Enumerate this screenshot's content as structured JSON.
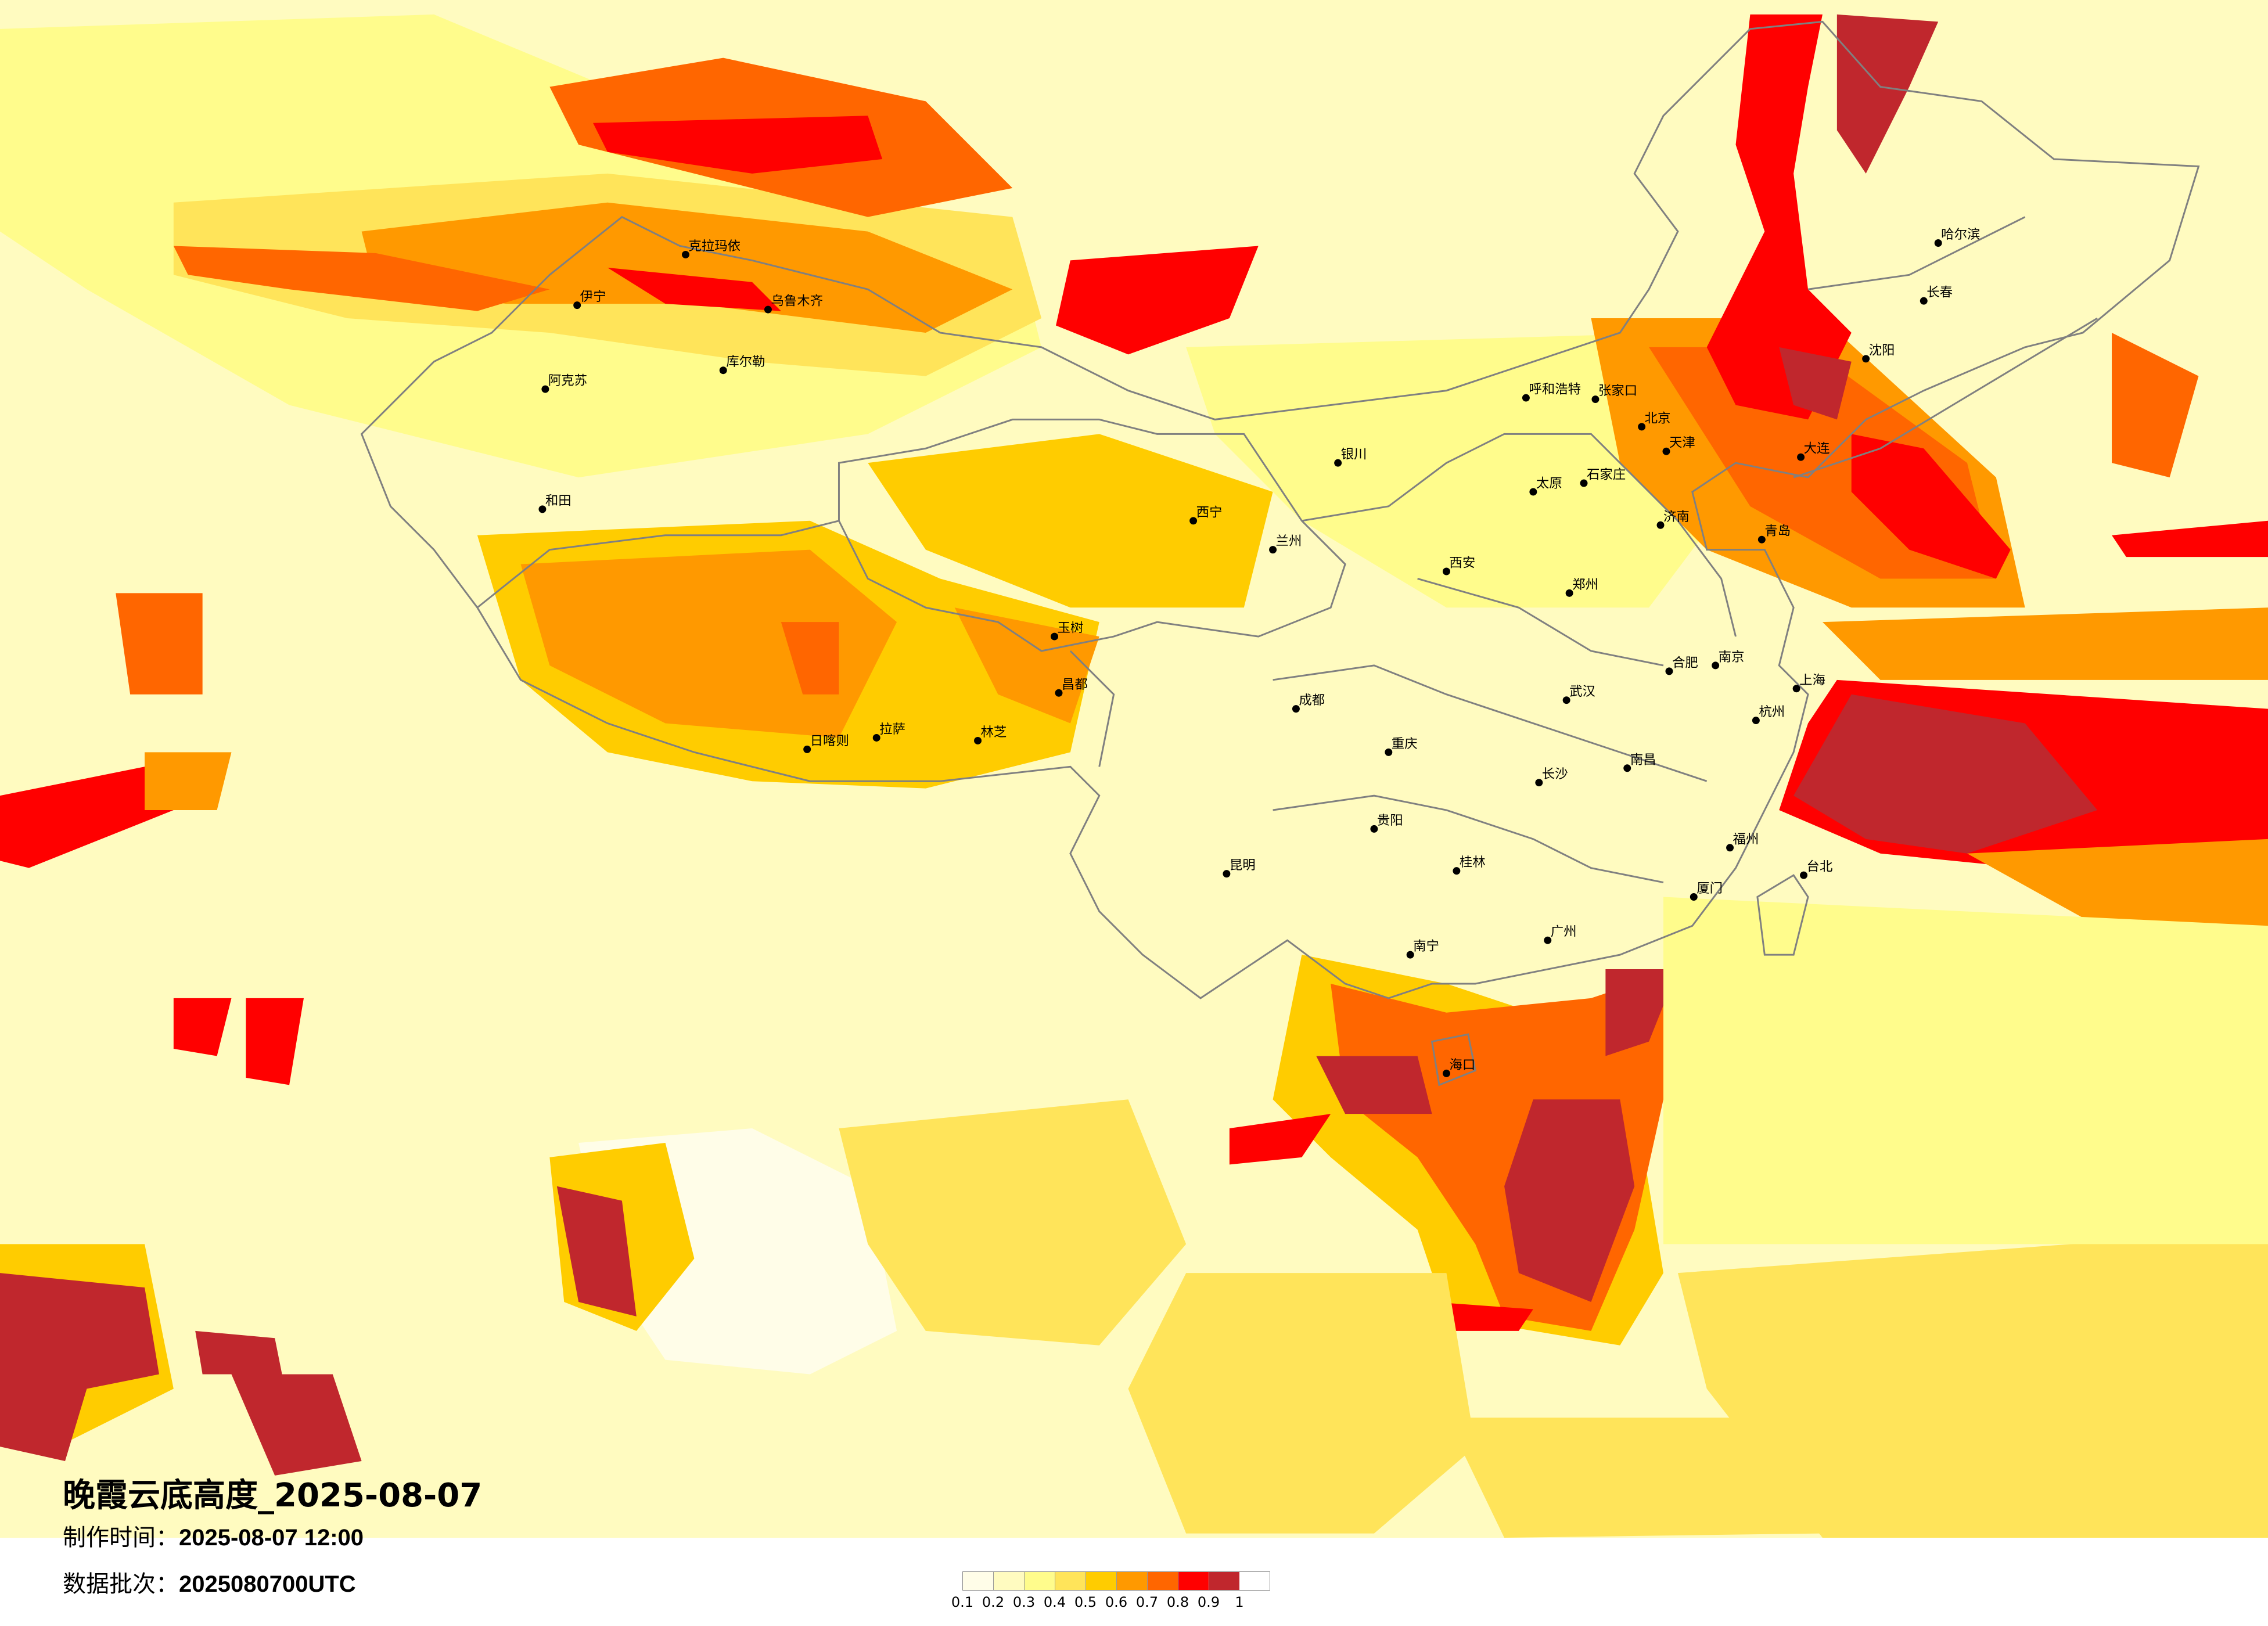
{
  "title": "晚霞云底高度_2025-08-07",
  "production_time": {
    "label": "制作时间：",
    "value": "2025-08-07 12:00"
  },
  "data_batch": {
    "label": "数据批次：",
    "value": "2025080700UTC"
  },
  "legend": {
    "ticks": [
      "0.1",
      "0.2",
      "0.3",
      "0.4",
      "0.5",
      "0.6",
      "0.7",
      "0.8",
      "0.9",
      "1"
    ],
    "colors": [
      "#fffde8",
      "#fffbc0",
      "#fffc8c",
      "#ffe45a",
      "#ffcc00",
      "#ff9900",
      "#ff6600",
      "#ff0000",
      "#c0272d"
    ]
  },
  "map": {
    "background_color": "#fffde8",
    "border_color": "#808080",
    "city_marker": "black-dot",
    "cities": [
      "北京",
      "天津",
      "张家口",
      "石家庄",
      "济南",
      "青岛",
      "大连",
      "沈阳",
      "长春",
      "哈尔滨",
      "呼和浩特",
      "太原",
      "郑州",
      "西安",
      "兰州",
      "西宁",
      "银川",
      "乌鲁木齐",
      "克拉玛依",
      "伊宁",
      "库尔勒",
      "阿克苏",
      "和田",
      "拉萨",
      "日喀则",
      "林芝",
      "玉树",
      "昌都",
      "成都",
      "重庆",
      "贵阳",
      "昆明",
      "南宁",
      "广州",
      "海口",
      "桂林",
      "长沙",
      "武汉",
      "南昌",
      "合肥",
      "南京",
      "杭州",
      "上海",
      "福州",
      "厦门",
      "台北"
    ]
  }
}
